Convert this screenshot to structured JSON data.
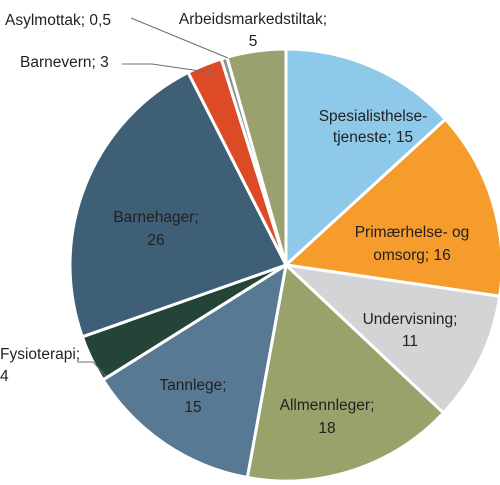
{
  "chart_data": {
    "type": "pie",
    "title": "",
    "start_angle_deg": 0,
    "direction": "clockwise",
    "slices": [
      {
        "line1": "Spesialisthelse-",
        "line2": "tjeneste; 15",
        "value": 15,
        "color": "#8ec9ea"
      },
      {
        "line1": "Primærhelse- og",
        "line2": "omsorg; 16",
        "value": 16,
        "color": "#f59c2c"
      },
      {
        "line1": "Undervisning;",
        "line2": "11",
        "value": 11,
        "color": "#d3d4d6"
      },
      {
        "line1": "Allmennleger;",
        "line2": "18",
        "value": 18,
        "color": "#99a26a"
      },
      {
        "line1": "Tannlege;",
        "line2": "15",
        "value": 15,
        "color": "#587993"
      },
      {
        "line1": "Fysioterapi;",
        "line2": "4",
        "value": 4,
        "color": "#234436"
      },
      {
        "line1": "Barnehager;",
        "line2": "26",
        "value": 26,
        "color": "#3e5f76"
      },
      {
        "line1": "Barnevern; 3",
        "line2": "",
        "value": 3,
        "color": "#dc4b26"
      },
      {
        "line1": "Asylmottak; 0,5",
        "line2": "",
        "value": 0.5,
        "color": "#8f9396"
      },
      {
        "line1": "Arbeidsmarkedstiltak;",
        "line2": "5",
        "value": 5,
        "color": "#9aa06e"
      }
    ]
  }
}
